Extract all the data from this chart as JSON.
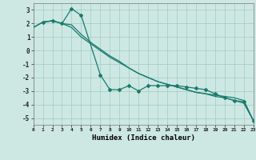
{
  "xlabel": "Humidex (Indice chaleur)",
  "background_color": "#cde8e2",
  "grid_color": "#a8cfc8",
  "line_color": "#1a7a6e",
  "x_min": 0,
  "x_max": 23,
  "y_min": -5.5,
  "y_max": 3.5,
  "yticks": [
    -5,
    -4,
    -3,
    -2,
    -1,
    0,
    1,
    2,
    3
  ],
  "line1_x": [
    0,
    1,
    2,
    3,
    4,
    5,
    6,
    7,
    8,
    9,
    10,
    11,
    12,
    13,
    14,
    15,
    16,
    17,
    18,
    19,
    20,
    21,
    22,
    23
  ],
  "line1_y": [
    1.7,
    2.1,
    2.2,
    2.0,
    1.7,
    1.0,
    0.5,
    0.0,
    -0.5,
    -0.9,
    -1.3,
    -1.7,
    -2.0,
    -2.3,
    -2.5,
    -2.7,
    -2.9,
    -3.1,
    -3.2,
    -3.3,
    -3.4,
    -3.5,
    -3.7,
    -5.2
  ],
  "line2_x": [
    1,
    2,
    3,
    4,
    5,
    7,
    8,
    9,
    10,
    11,
    12,
    13,
    14,
    15,
    16,
    17,
    18,
    19,
    20,
    21,
    22,
    23
  ],
  "line2_y": [
    2.1,
    2.2,
    2.0,
    3.1,
    2.6,
    -1.8,
    -2.9,
    -2.9,
    -2.6,
    -3.0,
    -2.6,
    -2.6,
    -2.6,
    -2.6,
    -2.7,
    -2.8,
    -2.9,
    -3.2,
    -3.5,
    -3.7,
    -3.8,
    -5.2
  ],
  "line3_x": [
    0,
    1,
    2,
    3,
    4,
    5,
    6,
    7,
    8,
    9,
    10,
    11,
    12,
    13,
    14,
    15,
    16,
    17,
    18,
    19,
    20,
    21,
    22,
    23
  ],
  "line3_y": [
    1.7,
    2.1,
    2.2,
    2.0,
    1.9,
    1.2,
    0.6,
    0.1,
    -0.4,
    -0.8,
    -1.3,
    -1.7,
    -2.0,
    -2.3,
    -2.5,
    -2.7,
    -2.9,
    -3.1,
    -3.2,
    -3.4,
    -3.5,
    -3.7,
    -3.9,
    -5.2
  ]
}
